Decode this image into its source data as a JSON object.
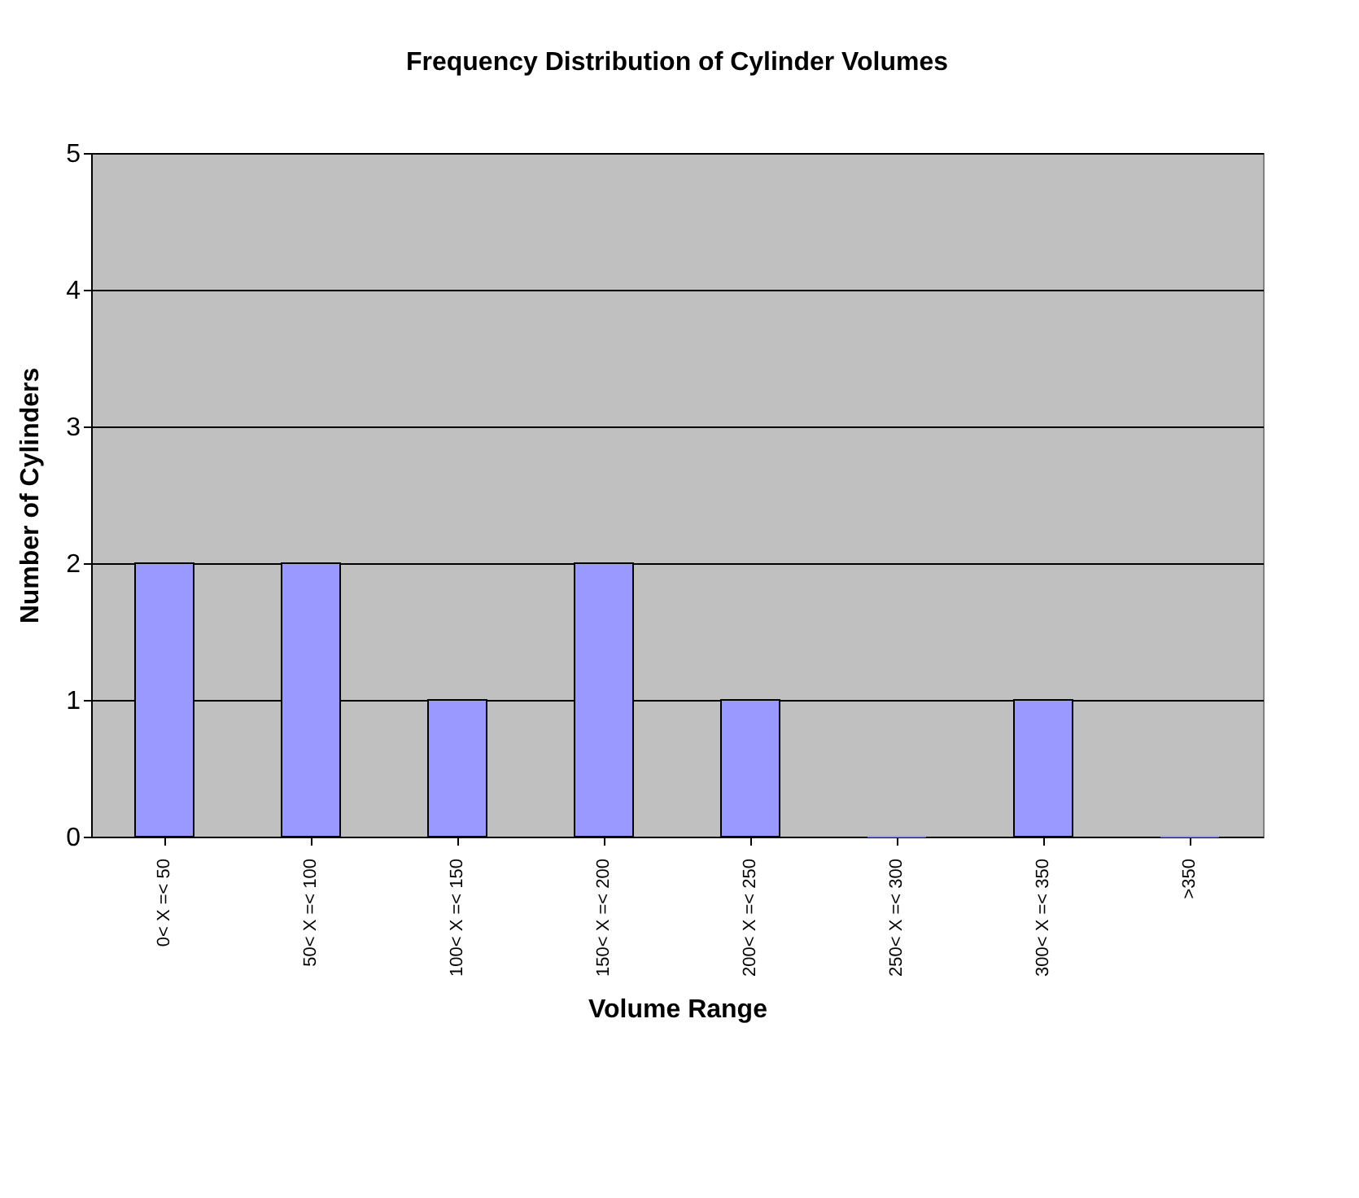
{
  "chart_data": {
    "type": "bar",
    "title": "Frequency Distribution of Cylinder Volumes",
    "xlabel": "Volume Range",
    "ylabel": "Number of Cylinders",
    "categories": [
      "0< X =< 50",
      "50< X =< 100",
      "100< X =< 150",
      "150< X =< 200",
      "200< X =< 250",
      "250< X =< 300",
      "300< X =< 350",
      ">350"
    ],
    "values": [
      2,
      2,
      1,
      2,
      1,
      0,
      1,
      0
    ],
    "color": "#9999ff",
    "ylim": [
      0,
      5
    ],
    "yticks": [
      0,
      1,
      2,
      3,
      4,
      5
    ],
    "grid": "y"
  }
}
